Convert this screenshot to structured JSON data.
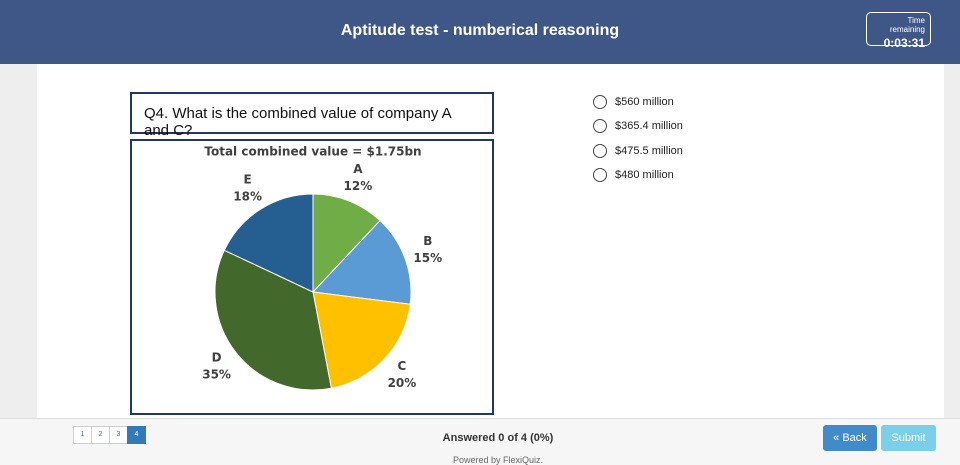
{
  "header": {
    "title": "Aptitude test - numberical reasoning",
    "timer": {
      "label": "Time remaining",
      "value": "0:03:31"
    }
  },
  "question": "Q4. What is the combined value of company A and C?",
  "chart_data": {
    "type": "pie",
    "title": "Total combined value = $1.75bn",
    "categories": [
      "A",
      "B",
      "C",
      "D",
      "E"
    ],
    "values": [
      12,
      15,
      20,
      35,
      18
    ],
    "value_labels": [
      "12%",
      "15%",
      "20%",
      "35%",
      "18%"
    ],
    "colors": [
      "#70ad47",
      "#5b9bd5",
      "#ffc000",
      "#43682b",
      "#255e91"
    ]
  },
  "options": [
    "$560 million",
    "$365.4 million",
    "$475.5 million",
    "$480 million"
  ],
  "footer": {
    "pages": [
      "1",
      "2",
      "3",
      "4"
    ],
    "active_page": 4,
    "status": "Answered 0 of 4 (0%)",
    "powered_by": "Powered by FlexiQuiz.",
    "buttons": {
      "back": "« Back",
      "submit": "Submit"
    }
  }
}
